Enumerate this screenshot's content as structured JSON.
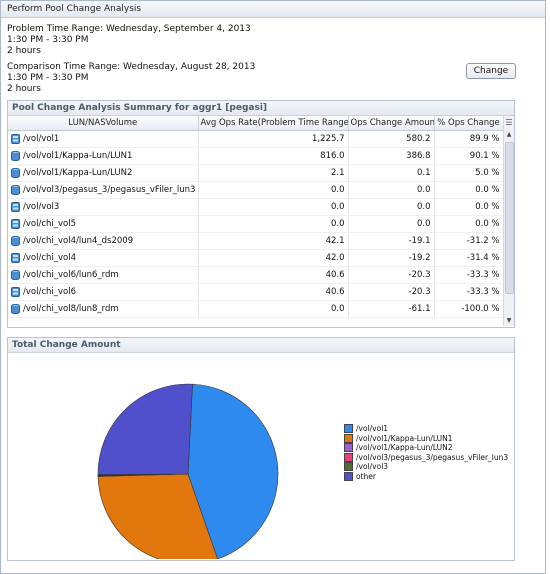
{
  "window": {
    "title": "Perform Pool Change Analysis"
  },
  "problem": {
    "range_label": "Problem Time Range: Wednesday, September 4, 2013",
    "time": "1:30 PM - 3:30 PM",
    "duration": "2 hours"
  },
  "comparison": {
    "range_label": "Comparison Time Range: Wednesday, August 28, 2013",
    "time": "1:30 PM - 3:30 PM",
    "duration": "2 hours"
  },
  "change_button": {
    "label": "Change"
  },
  "summary": {
    "title": "Pool Change Analysis Summary for aggr1 [pegasi]",
    "columns": [
      "LUN/NASVolume",
      "Avg Ops Rate(Problem Time Range)",
      "Ops Change Amount",
      "% Ops Change"
    ],
    "rows": [
      {
        "name": "/vol/vol1",
        "icon": "volume-icon",
        "avg": "1,225.7",
        "change": "580.2",
        "pct": "89.9 %"
      },
      {
        "name": "/vol/vol1/Kappa-Lun/LUN1",
        "icon": "lun-icon",
        "avg": "816.0",
        "change": "386.8",
        "pct": "90.1 %"
      },
      {
        "name": "/vol/vol1/Kappa-Lun/LUN2",
        "icon": "lun-icon",
        "avg": "2.1",
        "change": "0.1",
        "pct": "5.0 %"
      },
      {
        "name": "/vol/vol3/pegasus_3/pegasus_vFiler_lun3",
        "icon": "lun-icon",
        "avg": "0.0",
        "change": "0.0",
        "pct": "0.0 %"
      },
      {
        "name": "/vol/vol3",
        "icon": "volume-icon",
        "avg": "0.0",
        "change": "0.0",
        "pct": "0.0 %"
      },
      {
        "name": "/vol/chi_vol5",
        "icon": "volume-icon",
        "avg": "0.0",
        "change": "0.0",
        "pct": "0.0 %"
      },
      {
        "name": "/vol/chi_vol4/lun4_ds2009",
        "icon": "lun-icon",
        "avg": "42.1",
        "change": "-19.1",
        "pct": "-31.2 %"
      },
      {
        "name": "/vol/chi_vol4",
        "icon": "volume-icon",
        "avg": "42.0",
        "change": "-19.2",
        "pct": "-31.4 %"
      },
      {
        "name": "/vol/chi_vol6/lun6_rdm",
        "icon": "lun-icon",
        "avg": "40.6",
        "change": "-20.3",
        "pct": "-33.3 %"
      },
      {
        "name": "/vol/chi_vol6",
        "icon": "volume-icon",
        "avg": "40.6",
        "change": "-20.3",
        "pct": "-33.3 %"
      },
      {
        "name": "/vol/chi_vol8/lun8_rdm",
        "icon": "lun-icon",
        "avg": "0.0",
        "change": "-61.1",
        "pct": "-100.0 %"
      }
    ]
  },
  "total_change": {
    "title": "Total Change Amount"
  },
  "chart_data": {
    "type": "pie",
    "title": "",
    "legend_position": "right",
    "slices": [
      {
        "label": "/vol/vol1",
        "value": 44,
        "color": "#2f8af0"
      },
      {
        "label": "/vol/vol1/Kappa-Lun/LUN1",
        "value": 30,
        "color": "#e2780d"
      },
      {
        "label": "/vol/vol1/Kappa-Lun/LUN2",
        "value": 0.1,
        "color": "#9a5fd0"
      },
      {
        "label": "/vol/vol3/pegasus_3/pegasus_vFiler_lun3",
        "value": 0.1,
        "color": "#e8407a"
      },
      {
        "label": "/vol/vol3",
        "value": 0.1,
        "color": "#556b2f"
      },
      {
        "label": "other",
        "value": 26,
        "color": "#5050cc"
      }
    ]
  }
}
